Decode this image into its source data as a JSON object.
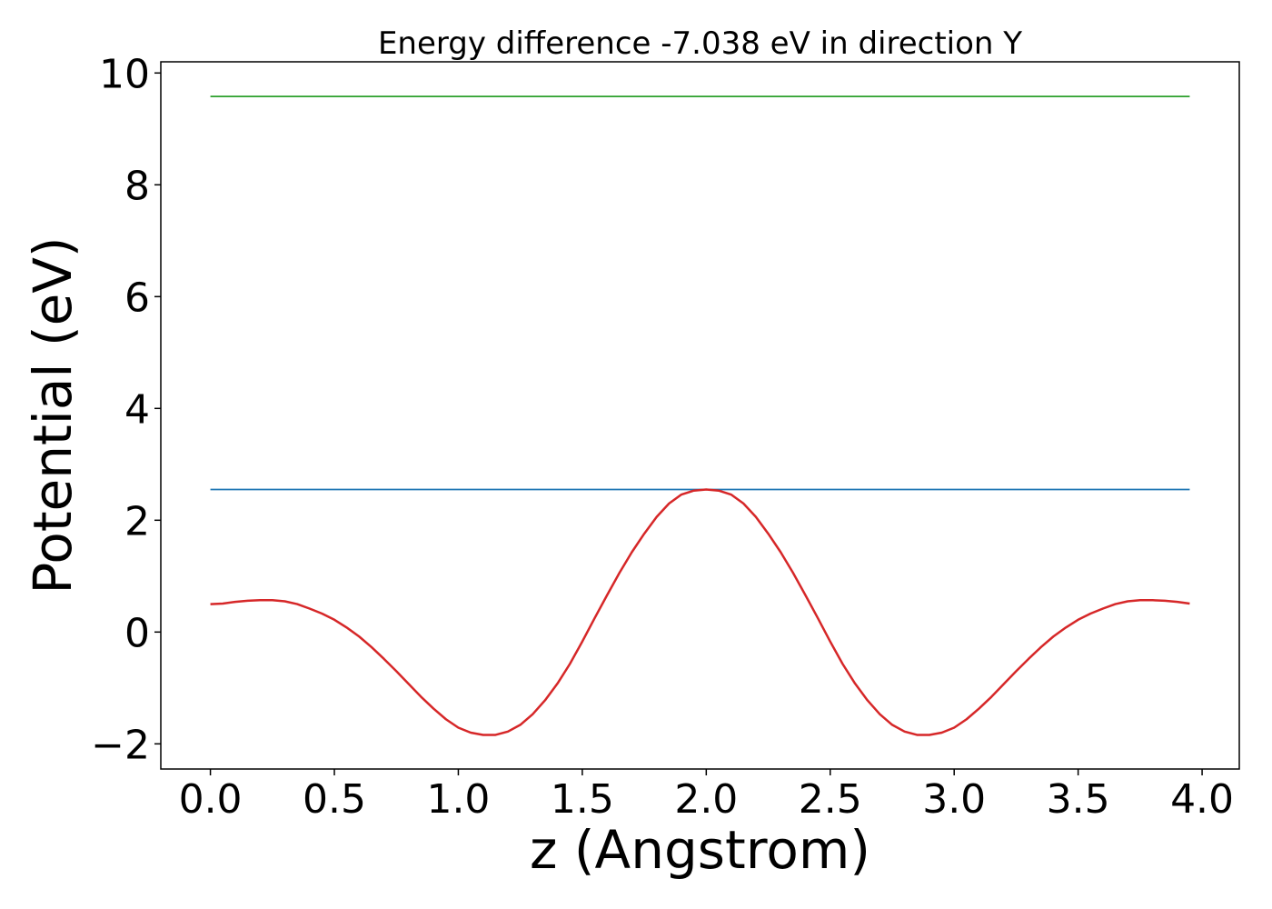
{
  "chart_data": {
    "type": "line",
    "title": "Energy difference -7.038 eV in direction Y",
    "xlabel": "z (Angstrom)",
    "ylabel": "Potential (eV)",
    "xlim": [
      -0.2,
      4.15
    ],
    "ylim": [
      -2.45,
      10.2
    ],
    "x_ticks": [
      0.0,
      0.5,
      1.0,
      1.5,
      2.0,
      2.5,
      3.0,
      3.5,
      4.0
    ],
    "x_tick_labels": [
      "0.0",
      "0.5",
      "1.0",
      "1.5",
      "2.0",
      "2.5",
      "3.0",
      "3.5",
      "4.0"
    ],
    "y_ticks": [
      -2,
      0,
      2,
      4,
      6,
      8,
      10
    ],
    "y_tick_labels": [
      "−2",
      "0",
      "2",
      "4",
      "6",
      "8",
      "10"
    ],
    "grid": false,
    "series": [
      {
        "color": "#1f77b4",
        "x": [
          0.0,
          3.95
        ],
        "y": [
          2.55,
          2.55
        ]
      },
      {
        "color": "#2ca02c",
        "x": [
          0.0,
          3.95
        ],
        "y": [
          9.58,
          9.58
        ]
      },
      {
        "color": "#d62728",
        "x": [
          0.0,
          0.05,
          0.1,
          0.15,
          0.2,
          0.25,
          0.3,
          0.35,
          0.4,
          0.45,
          0.5,
          0.55,
          0.6,
          0.65,
          0.7,
          0.75,
          0.8,
          0.85,
          0.9,
          0.95,
          1.0,
          1.05,
          1.1,
          1.15,
          1.2,
          1.25,
          1.3,
          1.35,
          1.4,
          1.45,
          1.5,
          1.55,
          1.6,
          1.65,
          1.7,
          1.75,
          1.8,
          1.85,
          1.9,
          1.95,
          2.0,
          2.05,
          2.1,
          2.15,
          2.2,
          2.25,
          2.3,
          2.35,
          2.4,
          2.45,
          2.5,
          2.55,
          2.6,
          2.65,
          2.7,
          2.75,
          2.8,
          2.85,
          2.9,
          2.95,
          3.0,
          3.05,
          3.1,
          3.15,
          3.2,
          3.25,
          3.3,
          3.35,
          3.4,
          3.45,
          3.5,
          3.55,
          3.6,
          3.65,
          3.7,
          3.75,
          3.8,
          3.85,
          3.9,
          3.95
        ],
        "y": [
          0.5,
          0.51,
          0.54,
          0.56,
          0.57,
          0.57,
          0.55,
          0.5,
          0.42,
          0.33,
          0.22,
          0.08,
          -0.08,
          -0.27,
          -0.48,
          -0.7,
          -0.93,
          -1.16,
          -1.37,
          -1.56,
          -1.71,
          -1.8,
          -1.84,
          -1.84,
          -1.78,
          -1.66,
          -1.47,
          -1.22,
          -0.92,
          -0.57,
          -0.17,
          0.25,
          0.66,
          1.06,
          1.43,
          1.76,
          2.06,
          2.3,
          2.46,
          2.53,
          2.55,
          2.53,
          2.46,
          2.3,
          2.06,
          1.76,
          1.43,
          1.06,
          0.66,
          0.25,
          -0.17,
          -0.57,
          -0.92,
          -1.22,
          -1.47,
          -1.66,
          -1.78,
          -1.84,
          -1.84,
          -1.8,
          -1.71,
          -1.56,
          -1.37,
          -1.16,
          -0.93,
          -0.7,
          -0.48,
          -0.27,
          -0.08,
          0.08,
          0.22,
          0.33,
          0.42,
          0.5,
          0.55,
          0.57,
          0.57,
          0.56,
          0.54,
          0.51
        ]
      }
    ]
  }
}
